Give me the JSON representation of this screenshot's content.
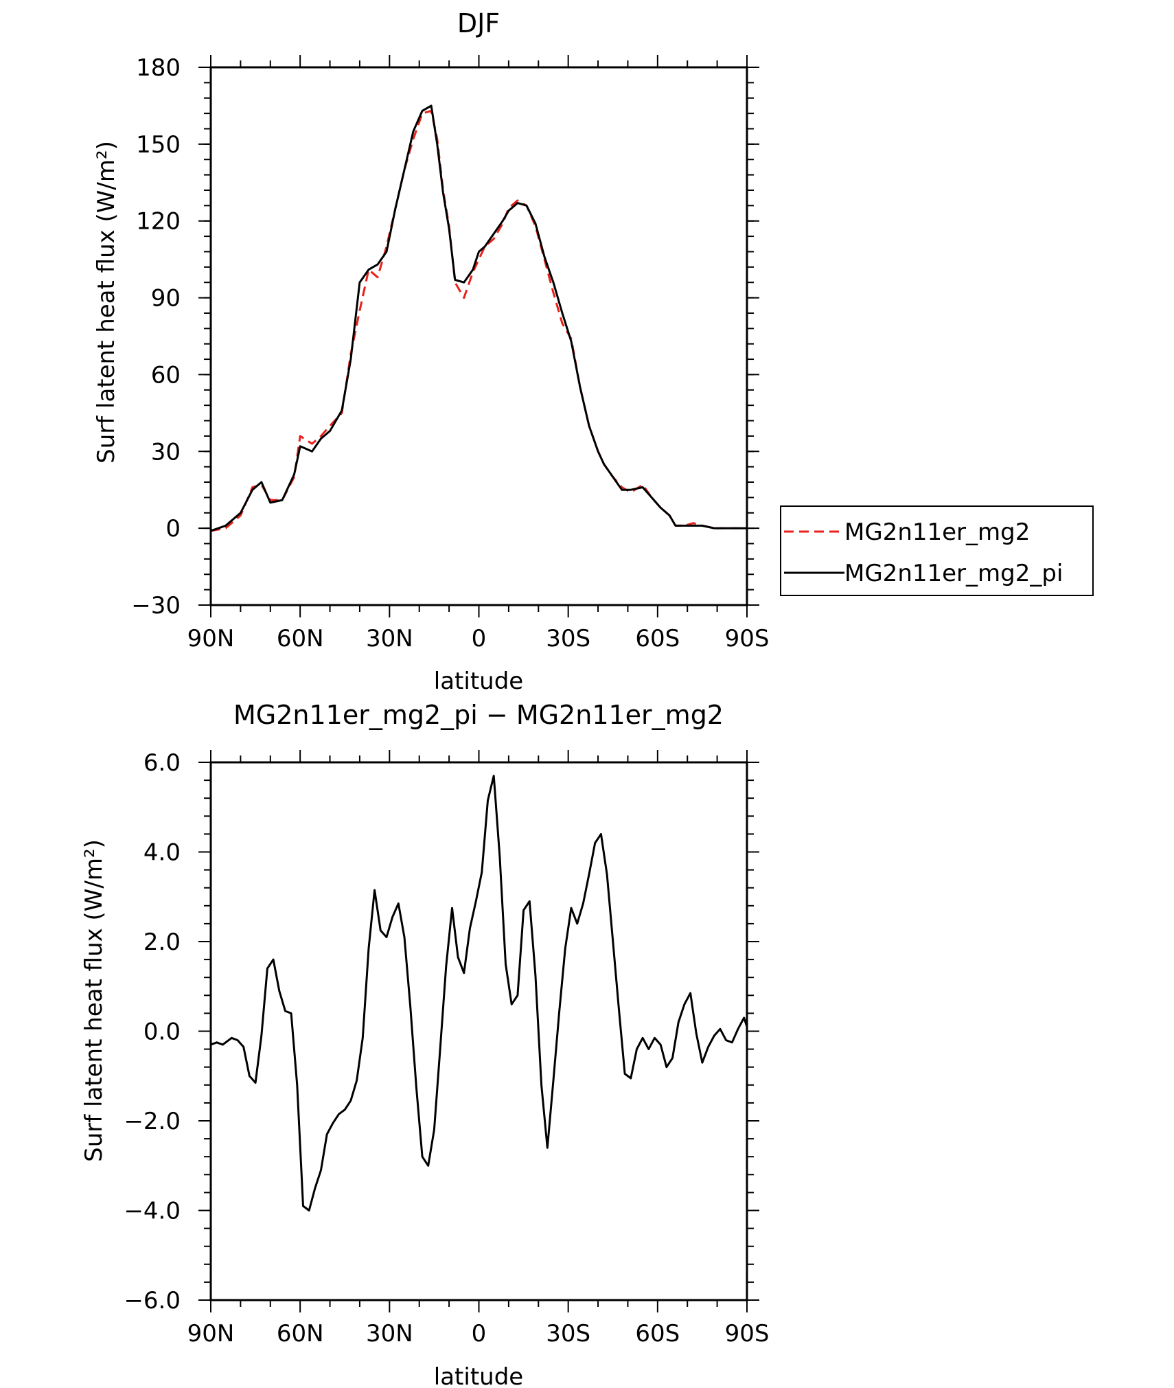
{
  "chart_data": [
    {
      "type": "line",
      "title": "DJF",
      "xlabel": "latitude",
      "ylabel": "Surf latent heat flux (W/m²)",
      "xlim": [
        90,
        -90
      ],
      "ylim": [
        -30,
        180
      ],
      "xticks": [
        90,
        60,
        30,
        0,
        -30,
        -60,
        -90
      ],
      "xtick_labels": [
        "90N",
        "60N",
        "30N",
        "0",
        "30S",
        "60S",
        "90S"
      ],
      "yticks": [
        -30,
        0,
        30,
        60,
        90,
        120,
        150,
        180
      ],
      "ytick_labels": [
        "−30",
        "0",
        "30",
        "60",
        "90",
        "120",
        "150",
        "180"
      ],
      "grid": false,
      "legend": "right",
      "x": [
        90,
        85,
        80,
        76,
        73,
        70,
        66,
        62,
        60,
        56,
        53,
        50,
        46,
        43,
        40,
        37,
        34,
        31,
        28,
        25,
        22,
        19,
        16,
        14,
        12,
        10,
        8,
        5,
        2,
        0,
        -2,
        -5,
        -8,
        -10,
        -13,
        -16,
        -19,
        -22,
        -25,
        -28,
        -31,
        -34,
        -37,
        -40,
        -42,
        -45,
        -48,
        -51,
        -55,
        -58,
        -61,
        -64,
        -66,
        -69,
        -72,
        -75,
        -79,
        -82,
        -85,
        -88,
        -90
      ],
      "series": [
        {
          "name": "MG2n11er_mg2",
          "color": "#e8211b",
          "dash": "dashed",
          "values": [
            -1,
            0,
            5,
            16,
            17,
            11,
            11,
            20,
            36,
            33,
            36,
            40,
            45,
            68,
            85,
            101,
            98,
            110,
            125,
            140,
            152,
            162,
            163,
            152,
            132,
            118,
            96,
            90,
            100,
            105,
            110,
            113,
            119,
            125,
            128,
            126,
            118,
            105,
            92,
            80,
            74,
            55,
            40,
            30,
            25,
            20,
            16,
            14,
            17,
            12,
            8,
            5,
            1,
            1,
            2,
            1,
            0,
            0,
            0,
            0,
            0
          ]
        },
        {
          "name": "MG2n11er_mg2_pi",
          "color": "#000000",
          "dash": "solid",
          "values": [
            -1,
            1,
            6,
            15,
            18,
            10,
            11,
            21,
            32,
            30,
            35,
            38,
            46,
            66,
            96,
            101,
            103,
            108,
            125,
            140,
            155,
            163,
            165,
            150,
            131,
            117,
            97,
            96,
            101,
            108,
            110,
            115,
            120,
            124,
            127,
            126,
            119,
            106,
            96,
            84,
            73,
            55,
            40,
            30,
            25,
            20,
            15,
            15,
            16,
            12,
            8,
            5,
            1,
            1,
            1,
            1,
            0,
            0,
            0,
            0,
            0
          ]
        }
      ]
    },
    {
      "type": "line",
      "title": "MG2n11er_mg2_pi − MG2n11er_mg2",
      "xlabel": "latitude",
      "ylabel": "Surf latent heat flux (W/m²)",
      "xlim": [
        90,
        -90
      ],
      "ylim": [
        -6,
        6
      ],
      "xticks": [
        90,
        60,
        30,
        0,
        -30,
        -60,
        -90
      ],
      "xtick_labels": [
        "90N",
        "60N",
        "30N",
        "0",
        "30S",
        "60S",
        "90S"
      ],
      "yticks": [
        -6,
        -4,
        -2,
        0,
        2,
        4,
        6
      ],
      "ytick_labels": [
        "−6.0",
        "−4.0",
        "−2.0",
        "0.0",
        "2.0",
        "4.0",
        "6.0"
      ],
      "grid": false,
      "series": [
        {
          "color": "#000000",
          "dash": "solid",
          "x": [
            90,
            88,
            86,
            83,
            81,
            79,
            77,
            75,
            73,
            71,
            69,
            67,
            65,
            63,
            61,
            59,
            57,
            55,
            53,
            51,
            49,
            47,
            45,
            43,
            41,
            39,
            37,
            35,
            33,
            31,
            29,
            27,
            25,
            23,
            21,
            19,
            17,
            15,
            13,
            11,
            9,
            7,
            5,
            3,
            1,
            -1,
            -3,
            -5,
            -7,
            -9,
            -11,
            -13,
            -15,
            -17,
            -19,
            -21,
            -23,
            -25,
            -27,
            -29,
            -31,
            -33,
            -35,
            -37,
            -39,
            -41,
            -43,
            -45,
            -47,
            -49,
            -51,
            -53,
            -55,
            -57,
            -59,
            -61,
            -63,
            -65,
            -67,
            -69,
            -71,
            -73,
            -75,
            -77,
            -79,
            -81,
            -83,
            -85,
            -87,
            -89,
            -90
          ],
          "values": [
            -0.3,
            -0.25,
            -0.3,
            -0.15,
            -0.2,
            -0.35,
            -1.0,
            -1.15,
            -0.1,
            1.4,
            1.6,
            0.9,
            0.45,
            0.4,
            -1.2,
            -3.9,
            -4.0,
            -3.5,
            -3.1,
            -2.3,
            -2.05,
            -1.85,
            -1.75,
            -1.55,
            -1.1,
            -0.15,
            1.85,
            3.15,
            2.25,
            2.1,
            2.55,
            2.85,
            2.1,
            0.55,
            -1.25,
            -2.8,
            -3.0,
            -2.2,
            -0.4,
            1.45,
            2.75,
            1.65,
            1.3,
            2.3,
            2.9,
            3.55,
            5.15,
            5.7,
            3.9,
            1.5,
            0.6,
            0.8,
            2.7,
            2.9,
            1.25,
            -1.2,
            -2.6,
            -1.1,
            0.45,
            1.85,
            2.75,
            2.4,
            2.85,
            3.5,
            4.2,
            4.4,
            3.5,
            2.0,
            0.5,
            -0.95,
            -1.05,
            -0.4,
            -0.15,
            -0.4,
            -0.15,
            -0.3,
            -0.8,
            -0.6,
            0.2,
            0.6,
            0.85,
            -0.05,
            -0.7,
            -0.35,
            -0.1,
            0.05,
            -0.2,
            -0.25,
            0.05,
            0.3,
            0.1
          ]
        }
      ]
    }
  ],
  "legend": {
    "items": [
      {
        "label": "MG2n11er_mg2",
        "color": "#e8211b",
        "dash": "dashed"
      },
      {
        "label": "MG2n11er_mg2_pi",
        "color": "#000000",
        "dash": "solid"
      }
    ]
  }
}
